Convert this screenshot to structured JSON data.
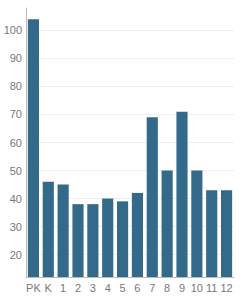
{
  "chart_data": {
    "type": "bar",
    "categories": [
      "PK",
      "K",
      "1",
      "2",
      "3",
      "4",
      "5",
      "6",
      "7",
      "8",
      "9",
      "10",
      "11",
      "12"
    ],
    "values": [
      104,
      46,
      45,
      38,
      38,
      40,
      39,
      42,
      69,
      50,
      71,
      50,
      43,
      43
    ],
    "color": "#336a8a",
    "ylim": [
      12,
      108
    ],
    "yticks": [
      20,
      30,
      40,
      50,
      60,
      70,
      80,
      90,
      100
    ],
    "grid": true
  }
}
